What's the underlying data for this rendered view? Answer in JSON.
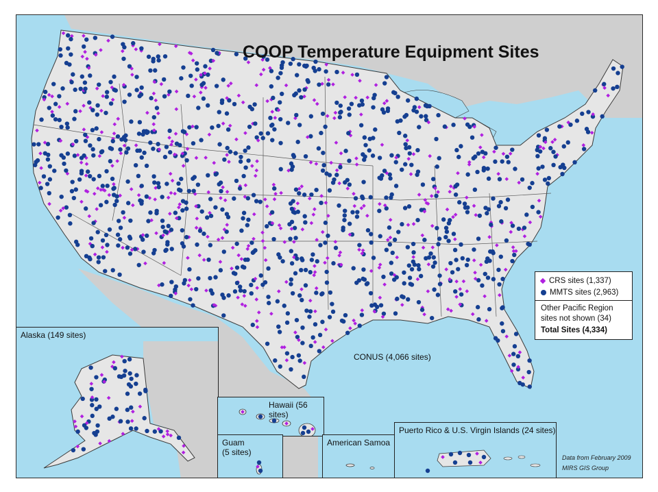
{
  "title": "COOP Temperature Equipment Sites",
  "colors": {
    "ocean": "#a8dcf0",
    "land": "#e2e2e2",
    "crs": "#b020e0",
    "mmts": "#153f91"
  },
  "legend": {
    "crs_label": "CRS sites (1,337)",
    "mmts_label": "MMTS sites (2,963)",
    "other_line1": "Other Pacific Region",
    "other_line2": "sites not shown (34)",
    "total": "Total Sites (4,334)"
  },
  "labels": {
    "conus": "CONUS (4,066 sites)",
    "alaska": "Alaska (149 sites)",
    "hawaii": "Hawaii (56 sites)",
    "guam_line1": "Guam",
    "guam_line2": "(5 sites)",
    "samoa": "American Samoa",
    "puerto_rico": "Puerto Rico & U.S. Virgin Islands (24 sites)"
  },
  "credit": {
    "line1": "Data from February 2009",
    "line2": "MIRS GIS Group"
  },
  "markers": {
    "crs_shape": "diamond",
    "mmts_shape": "circle"
  }
}
